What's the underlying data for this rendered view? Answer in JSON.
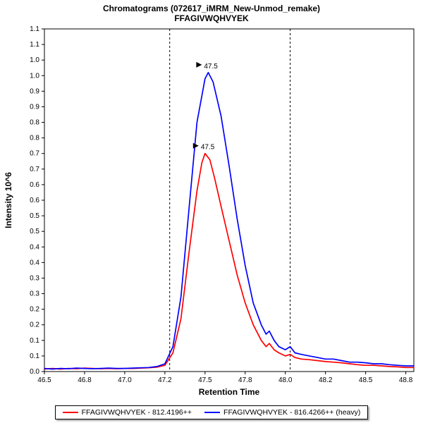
{
  "header": {
    "title": "Chromatograms (072617_iMRM_New-Unmod_remake)",
    "subtitle": "FFAGIVWQHVYEK"
  },
  "legend": {
    "items": [
      {
        "label": "FFAGIVWQHVYEK - 812.4196++",
        "color": "#ff0000"
      },
      {
        "label": "FFAGIVWQHVYEK - 816.4266++ (heavy)",
        "color": "#0000ff"
      }
    ]
  },
  "chart_data": {
    "type": "line",
    "title": "Chromatograms (072617_iMRM_New-Unmod_remake)",
    "subtitle": "FFAGIVWQHVYEK",
    "xlabel": "Retention Time",
    "ylabel": "Intensity 10^6",
    "xlim": [
      46.5,
      48.8
    ],
    "ylim": [
      0,
      1.1
    ],
    "grid": false,
    "legend_position": "bottom",
    "x_ticks": [
      {
        "v": 46.5,
        "label": "46.5"
      },
      {
        "v": 46.75,
        "label": "46.8"
      },
      {
        "v": 47.0,
        "label": "47.0"
      },
      {
        "v": 47.25,
        "label": "47.2"
      },
      {
        "v": 47.5,
        "label": "47.5"
      },
      {
        "v": 47.75,
        "label": "47.8"
      },
      {
        "v": 48.0,
        "label": "48.0"
      },
      {
        "v": 48.25,
        "label": "48.2"
      },
      {
        "v": 48.5,
        "label": "48.5"
      },
      {
        "v": 48.75,
        "label": "48.8"
      }
    ],
    "y_ticks": [
      {
        "v": 0.0,
        "label": "0.0"
      },
      {
        "v": 0.05,
        "label": "0.1"
      },
      {
        "v": 0.1,
        "label": "0.1"
      },
      {
        "v": 0.15,
        "label": "0.2"
      },
      {
        "v": 0.2,
        "label": "0.2"
      },
      {
        "v": 0.25,
        "label": "0.3"
      },
      {
        "v": 0.3,
        "label": "0.3"
      },
      {
        "v": 0.35,
        "label": "0.4"
      },
      {
        "v": 0.4,
        "label": "0.4"
      },
      {
        "v": 0.45,
        "label": "0.5"
      },
      {
        "v": 0.5,
        "label": "0.5"
      },
      {
        "v": 0.55,
        "label": "0.6"
      },
      {
        "v": 0.6,
        "label": "0.6"
      },
      {
        "v": 0.65,
        "label": "0.7"
      },
      {
        "v": 0.7,
        "label": "0.7"
      },
      {
        "v": 0.75,
        "label": "0.8"
      },
      {
        "v": 0.8,
        "label": "0.8"
      },
      {
        "v": 0.85,
        "label": "0.9"
      },
      {
        "v": 0.9,
        "label": "0.9"
      },
      {
        "v": 0.95,
        "label": "1.0"
      },
      {
        "v": 1.0,
        "label": "1.0"
      },
      {
        "v": 1.05,
        "label": "1.1"
      },
      {
        "v": 1.1,
        "label": "1.1"
      }
    ],
    "peak_boundaries": [
      47.28,
      48.03
    ],
    "series": [
      {
        "name": "FFAGIVWQHVYEK - 812.4196++",
        "color": "#ff0000",
        "points": [
          [
            46.5,
            0.008
          ],
          [
            46.55,
            0.01
          ],
          [
            46.6,
            0.008
          ],
          [
            46.65,
            0.01
          ],
          [
            46.7,
            0.009
          ],
          [
            46.75,
            0.011
          ],
          [
            46.8,
            0.01
          ],
          [
            46.85,
            0.009
          ],
          [
            46.9,
            0.01
          ],
          [
            46.95,
            0.009
          ],
          [
            47.0,
            0.01
          ],
          [
            47.05,
            0.01
          ],
          [
            47.1,
            0.011
          ],
          [
            47.15,
            0.012
          ],
          [
            47.2,
            0.014
          ],
          [
            47.25,
            0.02
          ],
          [
            47.3,
            0.06
          ],
          [
            47.35,
            0.17
          ],
          [
            47.4,
            0.38
          ],
          [
            47.45,
            0.58
          ],
          [
            47.48,
            0.67
          ],
          [
            47.5,
            0.7
          ],
          [
            47.53,
            0.68
          ],
          [
            47.56,
            0.62
          ],
          [
            47.6,
            0.53
          ],
          [
            47.65,
            0.42
          ],
          [
            47.7,
            0.31
          ],
          [
            47.75,
            0.22
          ],
          [
            47.8,
            0.15
          ],
          [
            47.85,
            0.1
          ],
          [
            47.88,
            0.08
          ],
          [
            47.9,
            0.09
          ],
          [
            47.93,
            0.07
          ],
          [
            47.96,
            0.06
          ],
          [
            48.0,
            0.05
          ],
          [
            48.03,
            0.055
          ],
          [
            48.06,
            0.045
          ],
          [
            48.1,
            0.04
          ],
          [
            48.15,
            0.038
          ],
          [
            48.2,
            0.035
          ],
          [
            48.25,
            0.032
          ],
          [
            48.3,
            0.03
          ],
          [
            48.35,
            0.028
          ],
          [
            48.4,
            0.025
          ],
          [
            48.45,
            0.022
          ],
          [
            48.5,
            0.02
          ],
          [
            48.55,
            0.02
          ],
          [
            48.6,
            0.018
          ],
          [
            48.65,
            0.016
          ],
          [
            48.7,
            0.015
          ],
          [
            48.75,
            0.013
          ],
          [
            48.8,
            0.013
          ]
        ]
      },
      {
        "name": "FFAGIVWQHVYEK - 816.4266++ (heavy)",
        "color": "#0000ff",
        "points": [
          [
            46.5,
            0.01
          ],
          [
            46.55,
            0.008
          ],
          [
            46.6,
            0.01
          ],
          [
            46.65,
            0.009
          ],
          [
            46.7,
            0.011
          ],
          [
            46.75,
            0.01
          ],
          [
            46.8,
            0.009
          ],
          [
            46.85,
            0.01
          ],
          [
            46.9,
            0.011
          ],
          [
            46.95,
            0.01
          ],
          [
            47.0,
            0.01
          ],
          [
            47.05,
            0.011
          ],
          [
            47.1,
            0.012
          ],
          [
            47.15,
            0.013
          ],
          [
            47.2,
            0.016
          ],
          [
            47.25,
            0.025
          ],
          [
            47.3,
            0.08
          ],
          [
            47.35,
            0.24
          ],
          [
            47.4,
            0.52
          ],
          [
            47.45,
            0.8
          ],
          [
            47.5,
            0.94
          ],
          [
            47.52,
            0.96
          ],
          [
            47.55,
            0.93
          ],
          [
            47.6,
            0.82
          ],
          [
            47.65,
            0.66
          ],
          [
            47.7,
            0.49
          ],
          [
            47.75,
            0.34
          ],
          [
            47.8,
            0.22
          ],
          [
            47.85,
            0.15
          ],
          [
            47.88,
            0.12
          ],
          [
            47.9,
            0.13
          ],
          [
            47.93,
            0.1
          ],
          [
            47.96,
            0.08
          ],
          [
            48.0,
            0.07
          ],
          [
            48.03,
            0.08
          ],
          [
            48.06,
            0.06
          ],
          [
            48.1,
            0.055
          ],
          [
            48.15,
            0.05
          ],
          [
            48.2,
            0.045
          ],
          [
            48.25,
            0.04
          ],
          [
            48.3,
            0.04
          ],
          [
            48.35,
            0.035
          ],
          [
            48.4,
            0.03
          ],
          [
            48.45,
            0.03
          ],
          [
            48.5,
            0.028
          ],
          [
            48.55,
            0.025
          ],
          [
            48.6,
            0.025
          ],
          [
            48.65,
            0.022
          ],
          [
            48.7,
            0.02
          ],
          [
            48.75,
            0.018
          ],
          [
            48.8,
            0.018
          ]
        ]
      }
    ],
    "annotations": [
      {
        "text": "47.5",
        "x": 47.5,
        "y": 0.7,
        "color": "#ff0000"
      },
      {
        "text": "47.5",
        "x": 47.52,
        "y": 0.96,
        "color": "#0000ff"
      }
    ]
  }
}
